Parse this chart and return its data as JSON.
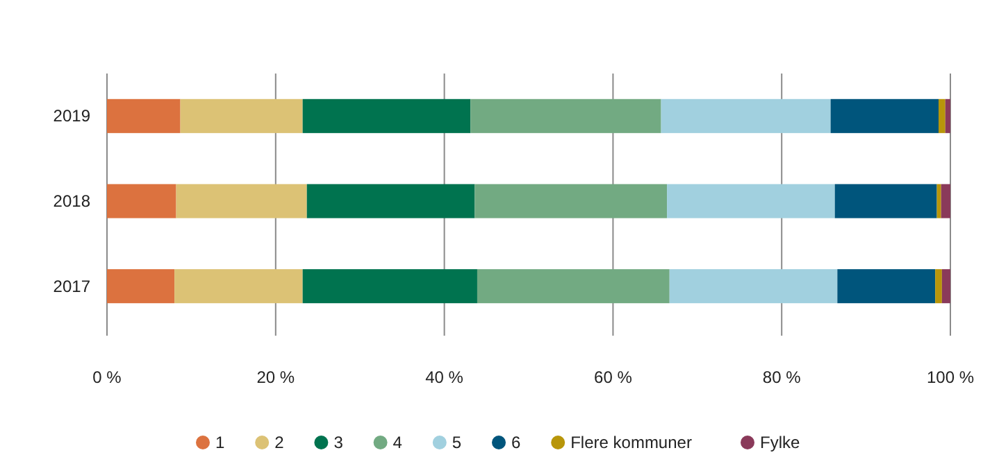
{
  "chart_data": {
    "type": "bar",
    "orientation": "horizontal",
    "stacked": true,
    "categories": [
      "2019",
      "2018",
      "2017"
    ],
    "series": [
      {
        "name": "1",
        "color": "#dc723f",
        "values": [
          8.7,
          8.2,
          8.0
        ]
      },
      {
        "name": "2",
        "color": "#dcc275",
        "values": [
          14.5,
          15.5,
          15.2
        ]
      },
      {
        "name": "3",
        "color": "#00734f",
        "values": [
          19.9,
          19.9,
          20.7
        ]
      },
      {
        "name": "4",
        "color": "#72aa82",
        "values": [
          22.6,
          22.8,
          22.8
        ]
      },
      {
        "name": "5",
        "color": "#a1d0df",
        "values": [
          20.1,
          19.9,
          19.9
        ]
      },
      {
        "name": "6",
        "color": "#00557c",
        "values": [
          12.8,
          12.1,
          11.6
        ]
      },
      {
        "name": "Flere kommuner",
        "color": "#b8960a",
        "values": [
          0.8,
          0.5,
          0.8
        ]
      },
      {
        "name": "Fylke",
        "color": "#8a3a5a",
        "values": [
          0.6,
          1.1,
          1.0
        ]
      }
    ],
    "xlim": [
      0,
      100
    ],
    "xticks": [
      {
        "value": 0,
        "label": "0 %"
      },
      {
        "value": 20,
        "label": "20 %"
      },
      {
        "value": 40,
        "label": "40 %"
      },
      {
        "value": 60,
        "label": "60 %"
      },
      {
        "value": 80,
        "label": "80 %"
      },
      {
        "value": 100,
        "label": "100 %"
      }
    ],
    "grid": "x",
    "legend": "bottom"
  }
}
